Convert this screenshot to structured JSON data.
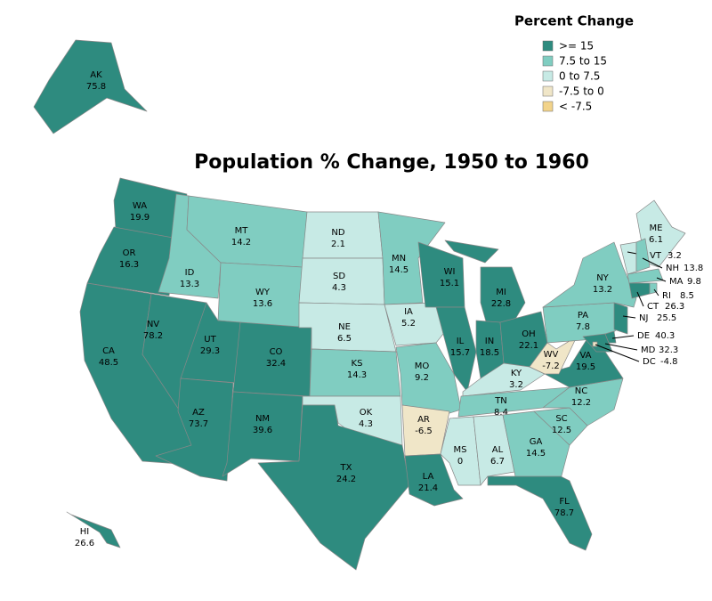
{
  "title": "Population % Change, 1950 to 1960",
  "legend": {
    "title": "Percent Change",
    "items": [
      {
        "label": ">= 15",
        "color": "#2e8b7f"
      },
      {
        "label": "7.5 to 15",
        "color": "#80cdc1"
      },
      {
        "label": "0 to 7.5",
        "color": "#c7eae5"
      },
      {
        "label": "-7.5 to 0",
        "color": "#f0e6c8"
      },
      {
        "label": "< -7.5",
        "color": "#f2d38a"
      }
    ]
  },
  "states": [
    {
      "abbr": "AK",
      "value": 75.8,
      "color": "#2e8b7f"
    },
    {
      "abbr": "WA",
      "value": 19.9,
      "color": "#2e8b7f"
    },
    {
      "abbr": "OR",
      "value": 16.3,
      "color": "#2e8b7f"
    },
    {
      "abbr": "CA",
      "value": 48.5,
      "color": "#2e8b7f"
    },
    {
      "abbr": "NV",
      "value": 78.2,
      "color": "#2e8b7f"
    },
    {
      "abbr": "ID",
      "value": 13.3,
      "color": "#80cdc1"
    },
    {
      "abbr": "MT",
      "value": 14.2,
      "color": "#80cdc1"
    },
    {
      "abbr": "WY",
      "value": 13.6,
      "color": "#80cdc1"
    },
    {
      "abbr": "UT",
      "value": 29.3,
      "color": "#2e8b7f"
    },
    {
      "abbr": "AZ",
      "value": 73.7,
      "color": "#2e8b7f"
    },
    {
      "abbr": "CO",
      "value": 32.4,
      "color": "#2e8b7f"
    },
    {
      "abbr": "NM",
      "value": 39.6,
      "color": "#2e8b7f"
    },
    {
      "abbr": "ND",
      "value": 2.1,
      "color": "#c7eae5"
    },
    {
      "abbr": "SD",
      "value": 4.3,
      "color": "#c7eae5"
    },
    {
      "abbr": "NE",
      "value": 6.5,
      "color": "#c7eae5"
    },
    {
      "abbr": "KS",
      "value": 14.3,
      "color": "#80cdc1"
    },
    {
      "abbr": "OK",
      "value": 4.3,
      "color": "#c7eae5"
    },
    {
      "abbr": "TX",
      "value": 24.2,
      "color": "#2e8b7f"
    },
    {
      "abbr": "MN",
      "value": 14.5,
      "color": "#80cdc1"
    },
    {
      "abbr": "IA",
      "value": 5.2,
      "color": "#c7eae5"
    },
    {
      "abbr": "MO",
      "value": 9.2,
      "color": "#80cdc1"
    },
    {
      "abbr": "AR",
      "value": -6.5,
      "color": "#f0e6c8"
    },
    {
      "abbr": "LA",
      "value": 21.4,
      "color": "#2e8b7f"
    },
    {
      "abbr": "WI",
      "value": 15.1,
      "color": "#2e8b7f"
    },
    {
      "abbr": "IL",
      "value": 15.7,
      "color": "#2e8b7f"
    },
    {
      "abbr": "MI",
      "value": 22.8,
      "color": "#2e8b7f"
    },
    {
      "abbr": "IN",
      "value": 18.5,
      "color": "#2e8b7f"
    },
    {
      "abbr": "OH",
      "value": 22.1,
      "color": "#2e8b7f"
    },
    {
      "abbr": "KY",
      "value": 3.2,
      "color": "#c7eae5"
    },
    {
      "abbr": "TN",
      "value": 8.4,
      "color": "#80cdc1"
    },
    {
      "abbr": "MS",
      "value": 0,
      "color": "#c7eae5"
    },
    {
      "abbr": "AL",
      "value": 6.7,
      "color": "#c7eae5"
    },
    {
      "abbr": "GA",
      "value": 14.5,
      "color": "#80cdc1"
    },
    {
      "abbr": "FL",
      "value": 78.7,
      "color": "#2e8b7f"
    },
    {
      "abbr": "SC",
      "value": 12.5,
      "color": "#80cdc1"
    },
    {
      "abbr": "NC",
      "value": 12.2,
      "color": "#80cdc1"
    },
    {
      "abbr": "VA",
      "value": 19.5,
      "color": "#2e8b7f"
    },
    {
      "abbr": "WV",
      "value": -7.2,
      "color": "#f0e6c8"
    },
    {
      "abbr": "PA",
      "value": 7.8,
      "color": "#80cdc1"
    },
    {
      "abbr": "NY",
      "value": 13.2,
      "color": "#80cdc1"
    },
    {
      "abbr": "ME",
      "value": 6.1,
      "color": "#c7eae5"
    },
    {
      "abbr": "VT",
      "value": 3.2,
      "color": "#c7eae5"
    },
    {
      "abbr": "NH",
      "value": 13.8,
      "color": "#80cdc1"
    },
    {
      "abbr": "MA",
      "value": 9.8,
      "color": "#80cdc1"
    },
    {
      "abbr": "CT",
      "value": 26.3,
      "color": "#2e8b7f"
    },
    {
      "abbr": "RI",
      "value": 8.5,
      "color": "#80cdc1"
    },
    {
      "abbr": "NJ",
      "value": 25.5,
      "color": "#2e8b7f"
    },
    {
      "abbr": "MD",
      "value": 32.3,
      "color": "#2e8b7f"
    },
    {
      "abbr": "DE",
      "value": 40.3,
      "color": "#2e8b7f"
    },
    {
      "abbr": "DC",
      "value": -4.8,
      "color": "#f0e6c8"
    },
    {
      "abbr": "HI",
      "value": 26.6,
      "color": "#2e8b7f"
    }
  ]
}
